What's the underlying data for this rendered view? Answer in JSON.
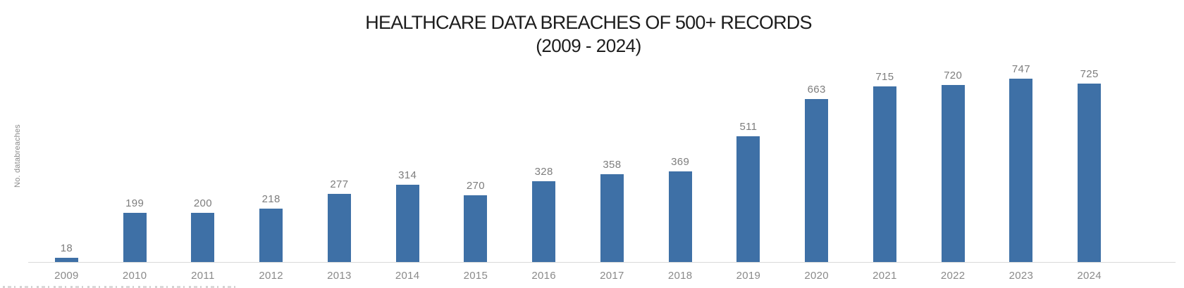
{
  "header": {
    "title": "HEALTHCARE DATA BREACHES OF 500+ RECORDS",
    "subtitle": "(2009 - 2024)"
  },
  "chart_data": {
    "type": "bar",
    "title": "HEALTHCARE DATA BREACHES OF 500+ RECORDS",
    "subtitle": "(2009 - 2024)",
    "categories": [
      "2009",
      "2010",
      "2011",
      "2012",
      "2013",
      "2014",
      "2015",
      "2016",
      "2017",
      "2018",
      "2019",
      "2020",
      "2021",
      "2022",
      "2023",
      "2024"
    ],
    "values": [
      18,
      199,
      200,
      218,
      277,
      314,
      270,
      328,
      358,
      369,
      511,
      663,
      715,
      720,
      747,
      725
    ],
    "xlabel": "",
    "ylabel": "No. databreaches",
    "ylim": [
      0,
      800
    ],
    "grid": false,
    "legend": false,
    "data_labels": true,
    "bar_color": "#3E70A6",
    "data_label_color": "#7D7D7D",
    "tick_label_color": "#8A8A8A",
    "axis_line_color": "#D9D9D9",
    "title_color": "#1D1D1D"
  }
}
